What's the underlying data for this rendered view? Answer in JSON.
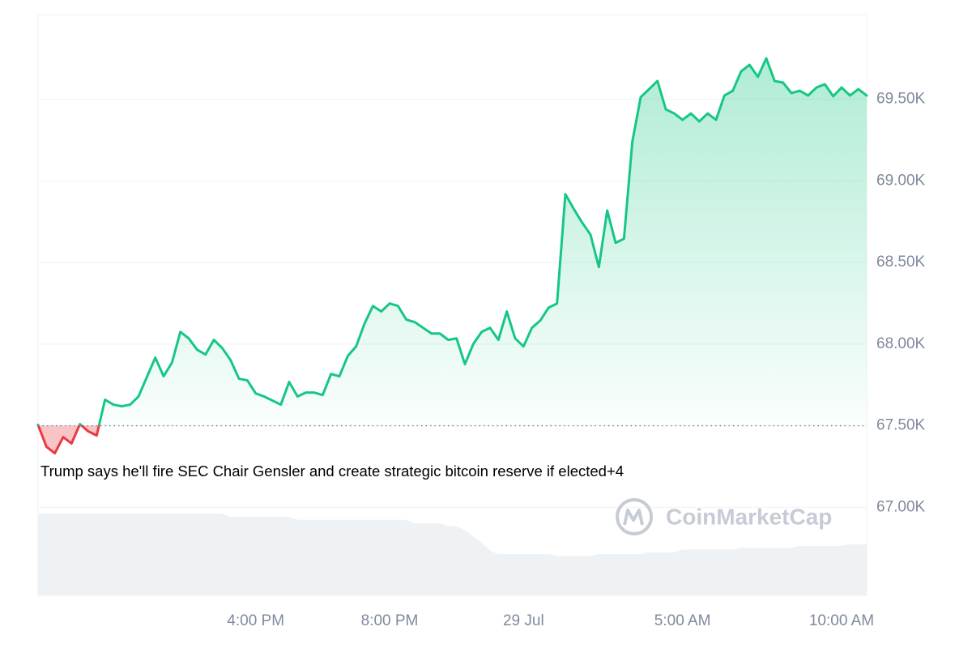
{
  "chart_data": {
    "type": "line",
    "annotation": "Trump says he'll fire SEC Chair Gensler and create strategic bitcoin reserve if elected+4",
    "watermark": "CoinMarketCap",
    "color": "#16c784",
    "down_color": "#ea3943",
    "baseline": 67500,
    "categories": [
      null,
      null,
      null,
      null,
      null,
      null,
      null,
      null,
      null,
      null,
      null,
      null,
      null,
      null,
      null,
      null,
      null,
      null,
      null,
      null,
      null,
      null,
      null,
      null,
      null,
      null,
      "4:00 PM",
      null,
      null,
      null,
      null,
      null,
      null,
      null,
      null,
      null,
      null,
      null,
      null,
      null,
      null,
      null,
      "8:00 PM",
      null,
      null,
      null,
      null,
      null,
      null,
      null,
      null,
      null,
      null,
      null,
      null,
      null,
      null,
      null,
      "29 Jul",
      null,
      null,
      null,
      null,
      null,
      null,
      null,
      null,
      null,
      null,
      null,
      null,
      null,
      null,
      null,
      null,
      null,
      null,
      "5:00 AM",
      null,
      null,
      null,
      null,
      null,
      null,
      null,
      null,
      null,
      null,
      null,
      null,
      null,
      null,
      null,
      null,
      null,
      null,
      "10:00 AM",
      null,
      null,
      null
    ],
    "values": [
      67505,
      67371,
      67331,
      67430,
      67391,
      67510,
      67465,
      67440,
      67659,
      67629,
      67619,
      67629,
      67679,
      67798,
      67917,
      67803,
      67887,
      68075,
      68035,
      67966,
      67936,
      68026,
      67976,
      67902,
      67788,
      67778,
      67698,
      67679,
      67654,
      67629,
      67768,
      67679,
      67703,
      67703,
      67688,
      67817,
      67803,
      67927,
      67986,
      68125,
      68234,
      68200,
      68249,
      68234,
      68150,
      68135,
      68100,
      68065,
      68065,
      68026,
      68035,
      67877,
      68001,
      68075,
      68100,
      68026,
      68200,
      68035,
      67986,
      68100,
      68145,
      68224,
      68249,
      68919,
      68829,
      68745,
      68671,
      68472,
      68819,
      68621,
      68646,
      69241,
      69514,
      69563,
      69613,
      69439,
      69414,
      69375,
      69414,
      69365,
      69414,
      69375,
      69524,
      69553,
      69672,
      69712,
      69638,
      69752,
      69613,
      69603,
      69539,
      69553,
      69524,
      69573,
      69593,
      69519,
      69573,
      69524,
      69563,
      69524
    ],
    "ylim": [
      66460,
      70020
    ],
    "yticks": [
      {
        "value": 67000,
        "label": "67.00K"
      },
      {
        "value": 67500,
        "label": "67.50K"
      },
      {
        "value": 68000,
        "label": "68.00K"
      },
      {
        "value": 68500,
        "label": "68.50K"
      },
      {
        "value": 69000,
        "label": "69.00K"
      },
      {
        "value": 69500,
        "label": "69.50K"
      }
    ],
    "grid": true,
    "volume": {
      "color": "#eff2f5",
      "axis": "y2",
      "values": [
        14.1,
        14.1,
        14.1,
        14.1,
        14.1,
        14.1,
        14.1,
        14.1,
        14.1,
        14.1,
        14.1,
        14.1,
        14.1,
        14.1,
        14.1,
        14.1,
        14.1,
        14.1,
        14.1,
        14.1,
        14.1,
        14.1,
        14.1,
        13.5,
        13.5,
        13.5,
        13.5,
        13.5,
        13.5,
        13.5,
        13.5,
        13.0,
        13.0,
        13.0,
        13.0,
        13.0,
        13.0,
        13.0,
        13.0,
        13.0,
        13.0,
        13.0,
        13.0,
        13.0,
        13.0,
        12.4,
        12.4,
        12.4,
        12.4,
        11.9,
        11.9,
        11.2,
        10.2,
        9.1,
        7.7,
        7.1,
        7.1,
        7.1,
        7.1,
        7.1,
        7.1,
        7.1,
        6.8,
        6.8,
        6.8,
        6.8,
        6.8,
        7.1,
        7.1,
        7.1,
        7.1,
        7.1,
        7.1,
        7.4,
        7.4,
        7.4,
        7.4,
        7.9,
        7.9,
        7.9,
        7.9,
        7.9,
        7.9,
        7.9,
        8.2,
        8.2,
        8.2,
        8.2,
        8.2,
        8.2,
        8.2,
        8.5,
        8.5,
        8.5,
        8.5,
        8.5,
        8.5,
        8.8,
        8.8,
        8.8
      ]
    },
    "y2lim": [
      0,
      100
    ]
  }
}
